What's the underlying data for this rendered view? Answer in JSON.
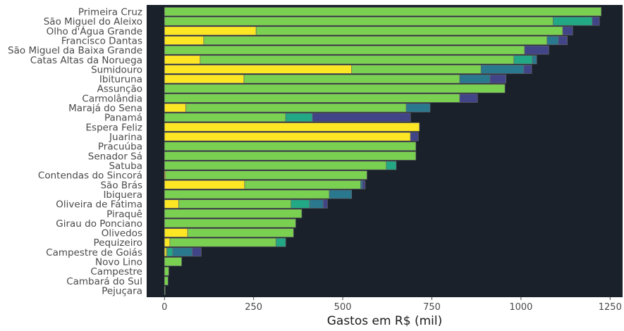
{
  "chart_data": {
    "type": "bar",
    "orientation": "horizontal",
    "stacked": true,
    "xlabel": "Gastos em R$ (mil)",
    "ylabel": "",
    "xlim": [
      -50,
      1285
    ],
    "xticks": [
      0,
      250,
      500,
      750,
      1000,
      1250
    ],
    "grid": false,
    "legend": "none",
    "categories": [
      "Primeira Cruz",
      "São Miguel do Aleixo",
      "Olho d'Água Grande",
      "Francisco Dantas",
      "São Miguel da Baixa Grande",
      "Catas Altas da Noruega",
      "Sumidouro",
      "Ibituruna",
      "Assunção",
      "Carmolândia",
      "Marajá do Sena",
      "Panamá",
      "Espera Feliz",
      "Juarina",
      "Pracuúba",
      "Senador Sá",
      "Satuba",
      "Contendas do Sincorá",
      "São Brás",
      "Ibiquera",
      "Oliveira de Fátima",
      "Piraquê",
      "Girau do Ponciano",
      "Olivedos",
      "Pequizeiro",
      "Campestre de Goiás",
      "Novo Lino",
      "Campestre",
      "Cambará do Sul",
      "Pejuçara"
    ],
    "series": [
      {
        "values": [
          0,
          0,
          257,
          110,
          0,
          100,
          525,
          223,
          0,
          0,
          60,
          0,
          715,
          690,
          0,
          0,
          0,
          3,
          225,
          0,
          40,
          0,
          0,
          65,
          15,
          5,
          0,
          0,
          0,
          0
        ]
      },
      {
        "values": [
          1225,
          1090,
          860,
          963,
          1010,
          880,
          363,
          605,
          955,
          828,
          618,
          340,
          0,
          0,
          705,
          705,
          622,
          565,
          325,
          462,
          315,
          385,
          368,
          297,
          298,
          3,
          48,
          12,
          10,
          2
        ]
      },
      {
        "values": [
          0,
          110,
          0,
          0,
          0,
          52,
          0,
          0,
          0,
          0,
          0,
          75,
          0,
          0,
          0,
          0,
          28,
          0,
          0,
          0,
          52,
          0,
          0,
          0,
          27,
          15,
          0,
          0,
          0,
          0
        ]
      },
      {
        "values": [
          0,
          0,
          0,
          32,
          0,
          12,
          120,
          85,
          0,
          0,
          67,
          0,
          0,
          0,
          0,
          0,
          0,
          0,
          5,
          63,
          38,
          0,
          0,
          0,
          0,
          55,
          0,
          0,
          0,
          0
        ]
      },
      {
        "values": [
          0,
          20,
          28,
          25,
          68,
          0,
          22,
          45,
          0,
          50,
          0,
          275,
          0,
          22,
          0,
          0,
          0,
          0,
          8,
          0,
          12,
          0,
          0,
          0,
          0,
          25,
          0,
          0,
          0,
          0
        ]
      }
    ],
    "colors": [
      "#fde725",
      "#7ad151",
      "#22a884",
      "#2a788e",
      "#414487"
    ],
    "plot_background": "#1a212b",
    "bar_outline": "#666666"
  }
}
